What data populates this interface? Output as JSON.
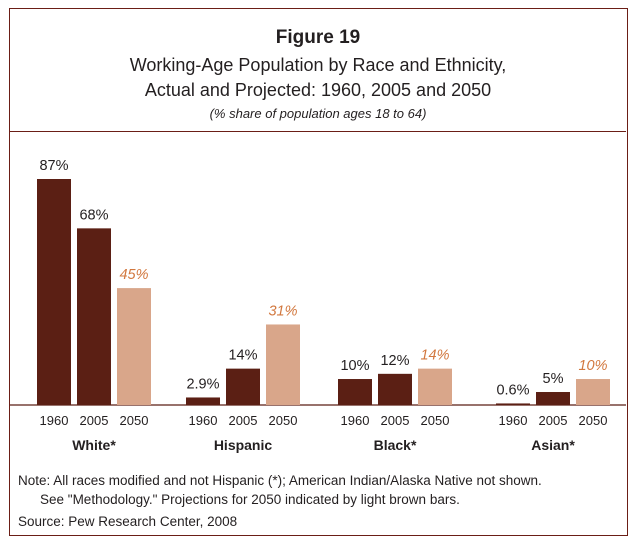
{
  "figure_label": "Figure 19",
  "chart_data": {
    "type": "bar",
    "title": [
      "Working-Age Population by Race and Ethnicity,",
      "Actual and Projected: 1960, 2005 and 2050"
    ],
    "subtitle": "(% share of population ages 18 to 64)",
    "groups": [
      "White*",
      "Hispanic",
      "Black*",
      "Asian*"
    ],
    "years": [
      "1960",
      "2005",
      "2050"
    ],
    "series": [
      {
        "name": "1960",
        "values": [
          87,
          2.9,
          10,
          0.6
        ],
        "labels": [
          "87%",
          "2.9%",
          "10%",
          "0.6%"
        ]
      },
      {
        "name": "2005",
        "values": [
          68,
          14,
          12,
          5
        ],
        "labels": [
          "68%",
          "14%",
          "12%",
          "5%"
        ]
      },
      {
        "name": "2050",
        "values": [
          45,
          31,
          14,
          10
        ],
        "labels": [
          "45%",
          "31%",
          "14%",
          "10%"
        ],
        "projected": true
      }
    ],
    "ylim": [
      0,
      90
    ],
    "grid": false,
    "colors": {
      "actual": "#5b1f14",
      "projected": "#d9a68a",
      "projected_label": "#d2783f"
    }
  },
  "notes": {
    "line_1": "Note: All races modified and not Hispanic (*); American Indian/Alaska Native not shown.",
    "line_2": "See \"Methodology.\" Projections for 2050 indicated by light brown bars.",
    "source": "Source: Pew Research Center, 2008"
  }
}
